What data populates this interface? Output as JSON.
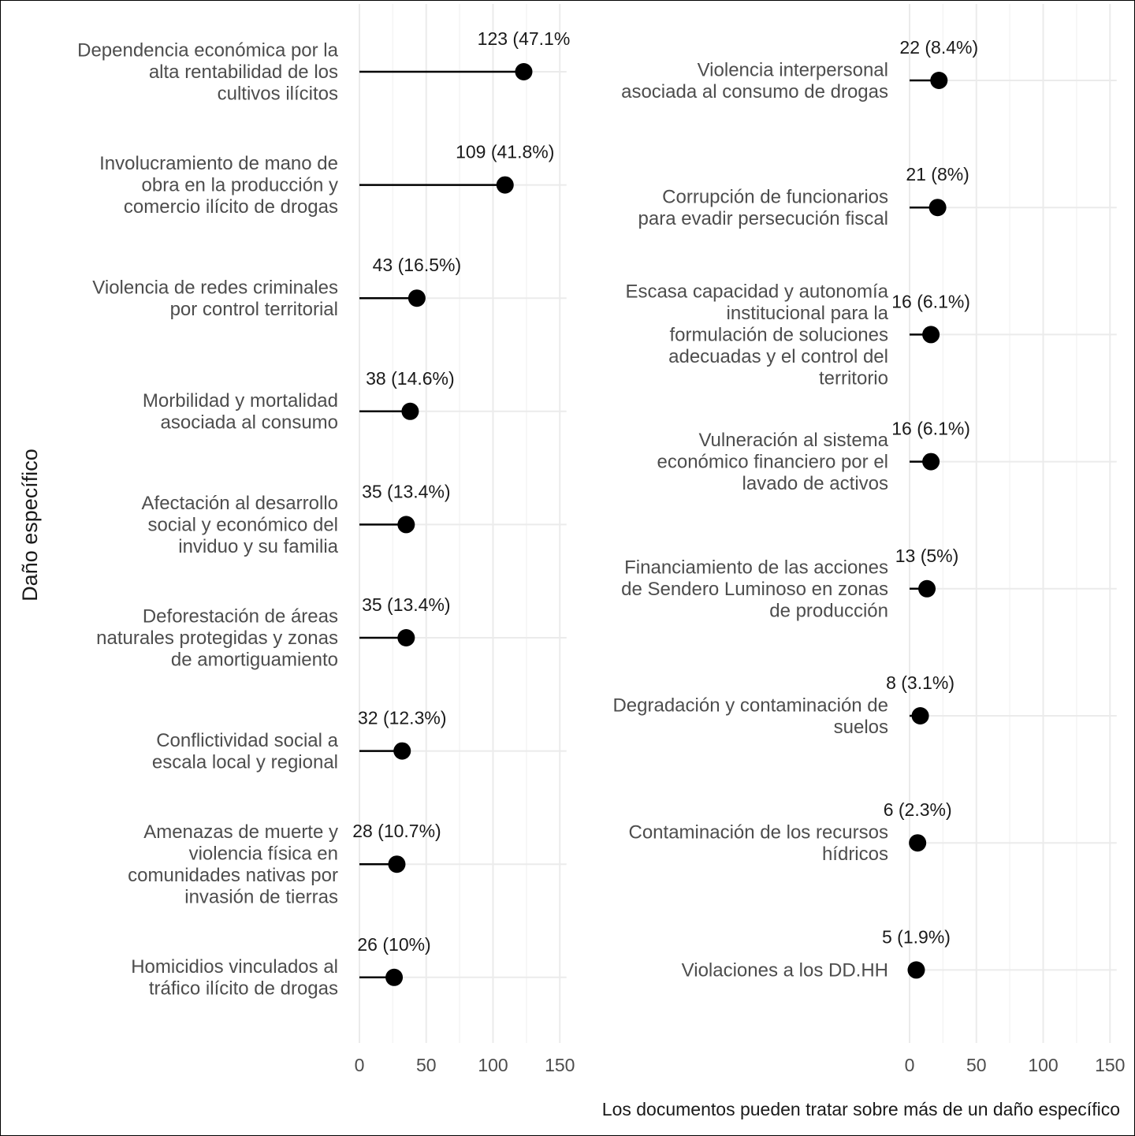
{
  "chart_data": {
    "type": "lollipop",
    "ylabel": "Daño específico",
    "caption": "Los documentos pueden tratar sobre más de un daño específico",
    "xlim": [
      0,
      155
    ],
    "x_ticks": [
      0,
      50,
      100,
      150
    ],
    "grid": true,
    "panels": [
      {
        "items": [
          {
            "label": "Dependencia económica por la alta rentabilidad de los cultivos ilícitos",
            "value": 123,
            "data_label": "123 (47.1%"
          },
          {
            "label": "Involucramiento de mano de obra en la producción y comercio ilícito de drogas",
            "value": 109,
            "data_label": "109 (41.8%)"
          },
          {
            "label": "Violencia de redes criminales por control territorial",
            "value": 43,
            "data_label": "43 (16.5%)"
          },
          {
            "label": "Morbilidad y mortalidad asociada al consumo",
            "value": 38,
            "data_label": "38 (14.6%)"
          },
          {
            "label": "Afectación al desarrollo social y económico del inviduo y su familia",
            "value": 35,
            "data_label": "35 (13.4%)"
          },
          {
            "label": "Deforestación de áreas naturales protegidas y zonas de amortiguamiento",
            "value": 35,
            "data_label": "35 (13.4%)"
          },
          {
            "label": "Conflictividad social a escala local y regional",
            "value": 32,
            "data_label": "32 (12.3%)"
          },
          {
            "label": "Amenazas de muerte y violencia física en comunidades nativas por invasión de tierras",
            "value": 28,
            "data_label": "28 (10.7%)"
          },
          {
            "label": "Homicidios vinculados al tráfico ilícito de drogas",
            "value": 26,
            "data_label": "26 (10%)"
          }
        ]
      },
      {
        "items": [
          {
            "label": "Violencia interpersonal asociada al consumo de drogas",
            "value": 22,
            "data_label": "22 (8.4%)"
          },
          {
            "label": "Corrupción de funcionarios para evadir persecución fiscal",
            "value": 21,
            "data_label": "21 (8%)"
          },
          {
            "label": "Escasa capacidad y autonomía institucional para la formulación de soluciones adecuadas y el control del territorio",
            "value": 16,
            "data_label": "16 (6.1%)"
          },
          {
            "label": "Vulneración al sistema económico financiero por el lavado de activos",
            "value": 16,
            "data_label": "16 (6.1%)"
          },
          {
            "label": "Financiamiento de las acciones de Sendero Luminoso en zonas de producción",
            "value": 13,
            "data_label": "13 (5%)"
          },
          {
            "label": "Degradación y contaminación de suelos",
            "value": 8,
            "data_label": "8 (3.1%)"
          },
          {
            "label": "Contaminación de los recursos hídricos",
            "value": 6,
            "data_label": "6 (2.3%)"
          },
          {
            "label": "Violaciones a los DD.HH",
            "value": 5,
            "data_label": "5 (1.9%)"
          }
        ]
      }
    ]
  }
}
